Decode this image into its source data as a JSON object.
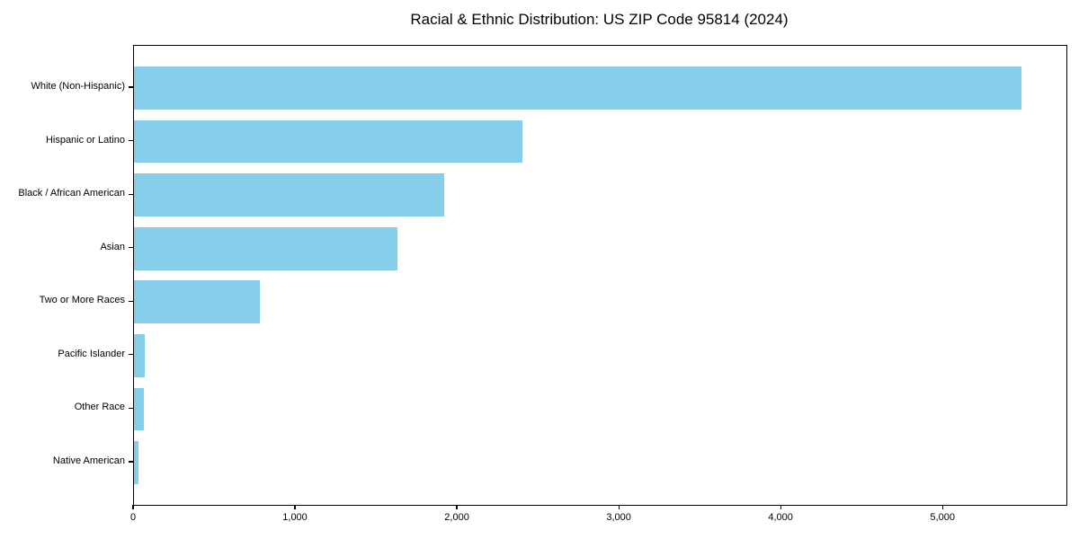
{
  "title": "Racial & Ethnic Distribution: US ZIP Code 95814 (2024)",
  "colors": {
    "bar": "#87CEEB",
    "frame": "#000000",
    "text": "#000000",
    "background": "#ffffff"
  },
  "chart_data": {
    "type": "bar",
    "orientation": "horizontal",
    "title": "Racial & Ethnic Distribution: US ZIP Code 95814 (2024)",
    "categories": [
      "White (Non-Hispanic)",
      "Hispanic or Latino",
      "Black / African American",
      "Asian",
      "Two or More Races",
      "Pacific Islander",
      "Other Race",
      "Native American"
    ],
    "values": [
      5480,
      2400,
      1915,
      1630,
      780,
      65,
      60,
      30
    ],
    "xlabel": "",
    "ylabel": "",
    "xlim": [
      0,
      5760
    ],
    "x_ticks": [
      0,
      1000,
      2000,
      3000,
      4000,
      5000
    ],
    "x_tick_labels": [
      "0",
      "1,000",
      "2,000",
      "3,000",
      "4,000",
      "5,000"
    ],
    "bar_color": "#87CEEB",
    "bar_rel_height": 0.8,
    "grid": false,
    "legend": null
  }
}
